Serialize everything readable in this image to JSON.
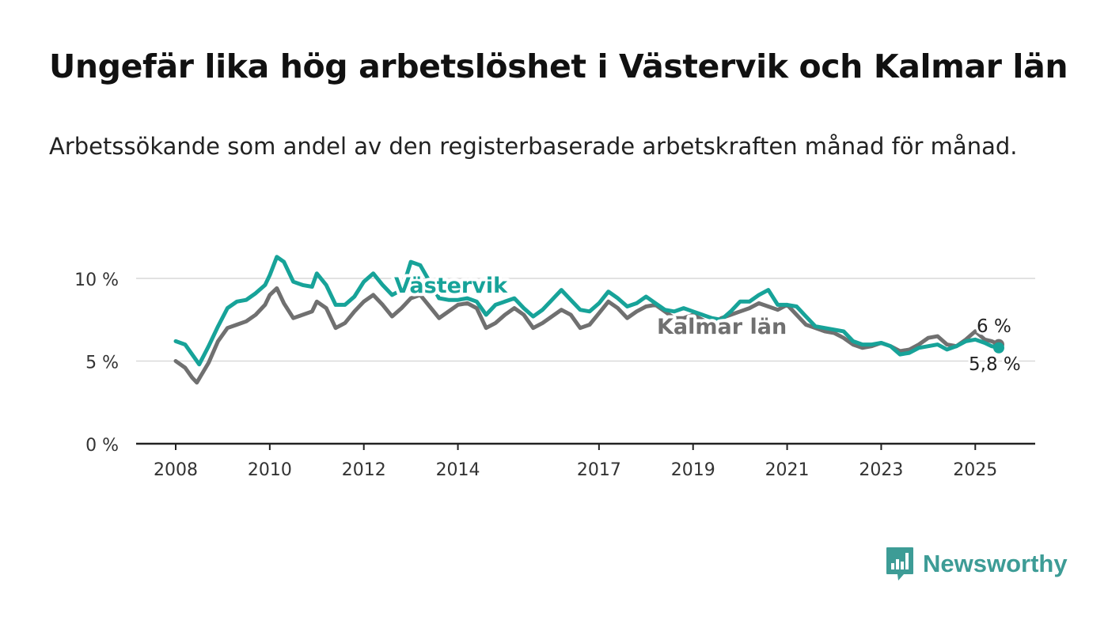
{
  "title": "Ungefär lika hög arbetslöshet i Västervik och Kalmar län",
  "subtitle": "Arbetssökande som andel av den registerbaserade arbetskraften månad för månad.",
  "brand": {
    "name": "Newsworthy",
    "icon": "newsworthy-logo-icon",
    "color": "#3d9c96"
  },
  "colors": {
    "vastervik": "#17a399",
    "kalmar": "#707070",
    "grid": "#d9d9d9",
    "axis": "#222222"
  },
  "chart_data": {
    "type": "line",
    "title": "Ungefär lika hög arbetslöshet i Västervik och Kalmar län",
    "xlabel": "",
    "ylabel": "",
    "xlim": [
      2008.0,
      2025.5
    ],
    "ylim": [
      0,
      10
    ],
    "y_ticks": [
      0,
      5,
      10
    ],
    "y_tick_labels": [
      "0 %",
      "5 %",
      "10 %"
    ],
    "x_ticks": [
      2008,
      2010,
      2012,
      2014,
      2017,
      2019,
      2021,
      2023,
      2025
    ],
    "x_tick_labels": [
      "2008",
      "2010",
      "2012",
      "2014",
      "2017",
      "2019",
      "2021",
      "2023",
      "2025"
    ],
    "grid": true,
    "legend": "inline labels",
    "series": [
      {
        "name": "Västervik",
        "color": "#17a399",
        "end_label": "5,8 %",
        "x": [
          2008.0,
          2008.2,
          2008.4,
          2008.5,
          2008.7,
          2008.9,
          2009.1,
          2009.3,
          2009.5,
          2009.7,
          2009.9,
          2010.0,
          2010.15,
          2010.3,
          2010.5,
          2010.7,
          2010.9,
          2011.0,
          2011.2,
          2011.4,
          2011.6,
          2011.8,
          2012.0,
          2012.2,
          2012.4,
          2012.6,
          2012.8,
          2012.9,
          2013.0,
          2013.2,
          2013.4,
          2013.6,
          2013.8,
          2014.0,
          2014.2,
          2014.4,
          2014.6,
          2014.8,
          2015.0,
          2015.2,
          2015.4,
          2015.6,
          2015.8,
          2016.0,
          2016.2,
          2016.4,
          2016.6,
          2016.8,
          2017.0,
          2017.2,
          2017.4,
          2017.6,
          2017.8,
          2018.0,
          2018.2,
          2018.4,
          2018.6,
          2018.8,
          2019.0,
          2019.2,
          2019.4,
          2019.6,
          2019.8,
          2020.0,
          2020.2,
          2020.4,
          2020.6,
          2020.8,
          2021.0,
          2021.2,
          2021.4,
          2021.6,
          2021.8,
          2022.0,
          2022.2,
          2022.4,
          2022.6,
          2022.8,
          2023.0,
          2023.2,
          2023.4,
          2023.6,
          2023.8,
          2024.0,
          2024.2,
          2024.4,
          2024.6,
          2024.8,
          2025.0,
          2025.2,
          2025.35,
          2025.5
        ],
        "y": [
          6.2,
          6.0,
          5.2,
          4.8,
          5.9,
          7.1,
          8.2,
          8.6,
          8.7,
          9.1,
          9.6,
          10.2,
          11.3,
          11.0,
          9.8,
          9.6,
          9.5,
          10.3,
          9.6,
          8.4,
          8.4,
          8.9,
          9.8,
          10.3,
          9.6,
          9.0,
          9.3,
          10.1,
          11.0,
          10.8,
          9.8,
          8.8,
          8.7,
          8.7,
          8.8,
          8.6,
          7.8,
          8.4,
          8.6,
          8.8,
          8.2,
          7.7,
          8.1,
          8.7,
          9.3,
          8.7,
          8.1,
          8.0,
          8.5,
          9.2,
          8.8,
          8.3,
          8.5,
          8.9,
          8.5,
          8.1,
          8.0,
          8.2,
          8.0,
          7.8,
          7.6,
          7.5,
          8.0,
          8.6,
          8.6,
          9.0,
          9.3,
          8.4,
          8.4,
          8.3,
          7.7,
          7.1,
          7.0,
          6.9,
          6.8,
          6.2,
          6.0,
          6.0,
          6.1,
          5.9,
          5.4,
          5.5,
          5.8,
          5.9,
          6.0,
          5.7,
          5.9,
          6.2,
          6.3,
          6.1,
          5.9,
          5.8
        ]
      },
      {
        "name": "Kalmar län",
        "color": "#707070",
        "end_label": "6 %",
        "x": [
          2008.0,
          2008.2,
          2008.35,
          2008.45,
          2008.7,
          2008.9,
          2009.1,
          2009.3,
          2009.5,
          2009.7,
          2009.9,
          2010.0,
          2010.15,
          2010.3,
          2010.5,
          2010.7,
          2010.9,
          2011.0,
          2011.2,
          2011.4,
          2011.6,
          2011.8,
          2012.0,
          2012.2,
          2012.4,
          2012.6,
          2012.8,
          2013.0,
          2013.2,
          2013.4,
          2013.6,
          2013.8,
          2014.0,
          2014.2,
          2014.4,
          2014.6,
          2014.8,
          2015.0,
          2015.2,
          2015.4,
          2015.6,
          2015.8,
          2016.0,
          2016.2,
          2016.4,
          2016.6,
          2016.8,
          2017.0,
          2017.2,
          2017.4,
          2017.6,
          2017.8,
          2018.0,
          2018.2,
          2018.4,
          2018.6,
          2018.8,
          2019.0,
          2019.2,
          2019.4,
          2019.6,
          2019.8,
          2020.0,
          2020.2,
          2020.4,
          2020.6,
          2020.8,
          2021.0,
          2021.2,
          2021.4,
          2021.6,
          2021.8,
          2022.0,
          2022.2,
          2022.4,
          2022.6,
          2022.8,
          2023.0,
          2023.2,
          2023.4,
          2023.6,
          2023.8,
          2024.0,
          2024.2,
          2024.4,
          2024.6,
          2024.8,
          2025.0,
          2025.2,
          2025.35,
          2025.5
        ],
        "y": [
          5.0,
          4.6,
          4.0,
          3.7,
          4.9,
          6.2,
          7.0,
          7.2,
          7.4,
          7.8,
          8.4,
          9.0,
          9.4,
          8.5,
          7.6,
          7.8,
          8.0,
          8.6,
          8.2,
          7.0,
          7.3,
          8.0,
          8.6,
          9.0,
          8.4,
          7.7,
          8.2,
          8.8,
          9.0,
          8.3,
          7.6,
          8.0,
          8.4,
          8.5,
          8.2,
          7.0,
          7.3,
          7.8,
          8.2,
          7.8,
          7.0,
          7.3,
          7.7,
          8.1,
          7.8,
          7.0,
          7.2,
          7.9,
          8.6,
          8.2,
          7.6,
          8.0,
          8.3,
          8.4,
          8.0,
          7.6,
          7.6,
          7.8,
          7.5,
          7.2,
          7.6,
          7.8,
          8.0,
          8.2,
          8.5,
          8.3,
          8.1,
          8.4,
          7.8,
          7.2,
          7.0,
          6.8,
          6.7,
          6.4,
          6.0,
          5.8,
          5.9,
          6.1,
          5.9,
          5.6,
          5.7,
          6.0,
          6.4,
          6.5,
          6.0,
          5.9,
          6.3,
          6.8,
          6.3,
          6.2,
          6.0
        ]
      }
    ]
  }
}
